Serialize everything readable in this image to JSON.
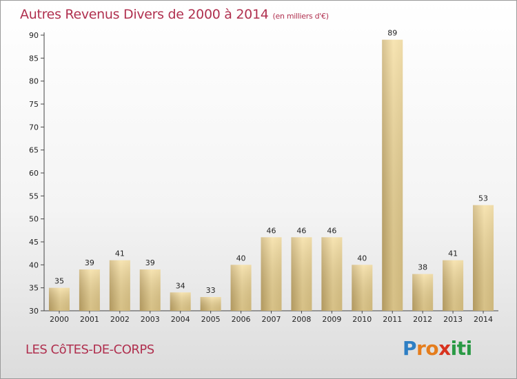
{
  "header": {
    "title": "Autres Revenus Divers de 2000 à 2014",
    "unit": "(en milliers d'€)"
  },
  "footer": {
    "commune": "LES CôTES-DE-CORPS",
    "logo_letters": [
      "P",
      "r",
      "o",
      "x",
      "i",
      "t",
      "i"
    ],
    "logo_colors": [
      "#2e7fc4",
      "#e57d1d",
      "#e57d1d",
      "#d8331f",
      "#2a9a45",
      "#2a9a45",
      "#2a9a45"
    ]
  },
  "colors": {
    "bar_light": "#f5dc9a",
    "bar_dark": "#c9ad6c",
    "title": "#b0304f"
  },
  "chart_data": {
    "type": "bar",
    "title": "Autres Revenus Divers de 2000 à 2014",
    "subtitle": "(en milliers d'€)",
    "xlabel": "",
    "ylabel": "",
    "categories": [
      "2000",
      "2001",
      "2002",
      "2003",
      "2004",
      "2005",
      "2006",
      "2007",
      "2008",
      "2009",
      "2010",
      "2011",
      "2012",
      "2013",
      "2014"
    ],
    "values": [
      35,
      39,
      41,
      39,
      34,
      33,
      40,
      46,
      46,
      46,
      40,
      89,
      38,
      41,
      53
    ],
    "ylim": [
      30,
      90
    ],
    "yticks": [
      "30",
      "35",
      "40",
      "45",
      "50",
      "55",
      "60",
      "65",
      "70",
      "75",
      "80",
      "85",
      "90"
    ],
    "grid": false,
    "legend": "none"
  }
}
